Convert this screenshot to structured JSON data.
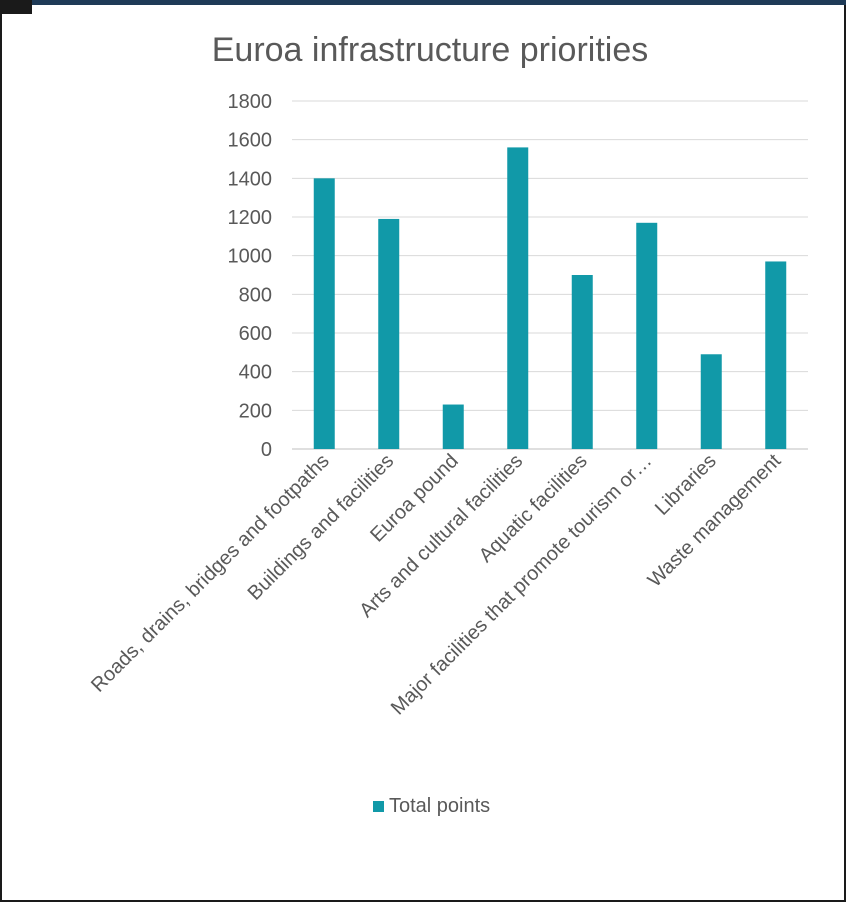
{
  "chart_data": {
    "type": "bar",
    "title": "Euroa infrastructure priorities",
    "xlabel": "",
    "ylabel": "",
    "ylim": [
      0,
      1800
    ],
    "yticks": [
      0,
      200,
      400,
      600,
      800,
      1000,
      1200,
      1400,
      1600,
      1800
    ],
    "grid": true,
    "legend_position": "bottom",
    "categories": [
      "Roads, drains, bridges and footpaths",
      "Buildings and facilities",
      "Euroa pound",
      "Arts and cultural facilities",
      "Aquatic facilities",
      "Major facilities that promote tourism or…",
      "Libraries",
      "Waste management"
    ],
    "series": [
      {
        "name": "Total points",
        "values": [
          1400,
          1190,
          230,
          1560,
          900,
          1170,
          490,
          970
        ]
      }
    ],
    "colors": {
      "bar": "#1199a8",
      "grid": "#d9d9d9",
      "text": "#595959",
      "title": "#595959"
    }
  }
}
